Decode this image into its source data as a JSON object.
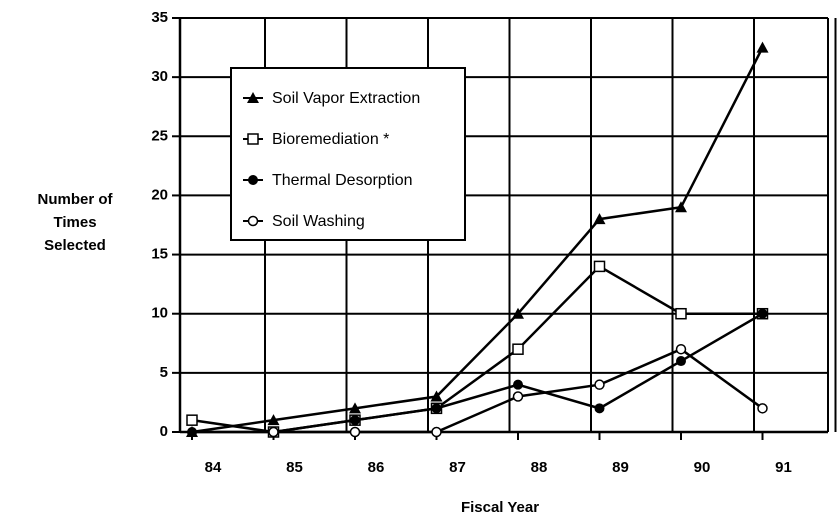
{
  "chart_data": {
    "type": "line",
    "ylabel": [
      "Number of",
      "Times",
      "Selected"
    ],
    "xlabel": "Fiscal Year",
    "categories": [
      "84",
      "85",
      "86",
      "87",
      "88",
      "89",
      "90",
      "91"
    ],
    "series": [
      {
        "name": "Soil Vapor Extraction",
        "color": "#000000",
        "marker": "triangle",
        "values": [
          0,
          1,
          2,
          3,
          10,
          18,
          19,
          32.5
        ]
      },
      {
        "name": "Bioremediation *",
        "color": "#000000",
        "marker": "square-open",
        "values": [
          1,
          0,
          1,
          2,
          7,
          14,
          10,
          10
        ]
      },
      {
        "name": "Thermal Desorption",
        "color": "#000000",
        "marker": "circle",
        "values": [
          0,
          0,
          1,
          2,
          4,
          2,
          6,
          10
        ]
      },
      {
        "name": "Soil Washing",
        "color": "#000000",
        "marker": "circle-open",
        "values": [
          null,
          0,
          0,
          0,
          3,
          4,
          7,
          2
        ]
      }
    ],
    "ylim": [
      0,
      35
    ],
    "yticks": [
      0,
      5,
      10,
      15,
      20,
      25,
      30,
      35
    ],
    "grid": true
  }
}
